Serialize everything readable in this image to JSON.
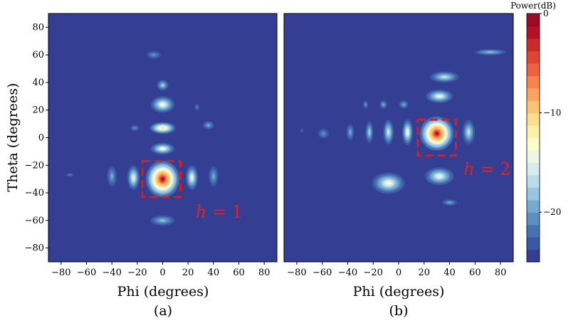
{
  "chart_data": [
    {
      "type": "heatmap",
      "panel_label": "(a)",
      "xlabel": "Phi (degrees)",
      "ylabel": "Theta (degrees)",
      "xlim": [
        -90,
        90
      ],
      "ylim": [
        -90,
        90
      ],
      "xticks": [
        -80,
        -60,
        -40,
        -20,
        0,
        20,
        40,
        60,
        80
      ],
      "yticks": [
        -80,
        -60,
        -40,
        -20,
        0,
        20,
        40,
        60,
        80
      ],
      "annotation": {
        "base": "h",
        "rest": " = 1",
        "box": {
          "phi_range": [
            -16,
            14
          ],
          "theta_range": [
            -43,
            -17
          ]
        }
      },
      "lobes": [
        {
          "phi": 0,
          "theta": -30,
          "peak_db": 0,
          "rx": 15,
          "ry": 15
        },
        {
          "phi": -23,
          "theta": -29,
          "peak_db": -14,
          "rx": 6,
          "ry": 11
        },
        {
          "phi": 23,
          "theta": -29,
          "peak_db": -14,
          "rx": 6,
          "ry": 11
        },
        {
          "phi": 0,
          "theta": -60,
          "peak_db": -18,
          "rx": 13,
          "ry": 5
        },
        {
          "phi": 0,
          "theta": -8,
          "peak_db": -13,
          "rx": 11,
          "ry": 5
        },
        {
          "phi": 0,
          "theta": 7,
          "peak_db": -10,
          "rx": 12,
          "ry": 5
        },
        {
          "phi": 0,
          "theta": 24,
          "peak_db": -13,
          "rx": 11,
          "ry": 7
        },
        {
          "phi": 0,
          "theta": 38,
          "peak_db": -17,
          "rx": 6,
          "ry": 5
        },
        {
          "phi": -7,
          "theta": 60,
          "peak_db": -20,
          "rx": 8,
          "ry": 4
        },
        {
          "phi": -40,
          "theta": -28,
          "peak_db": -19,
          "rx": 5,
          "ry": 10
        },
        {
          "phi": 40,
          "theta": -28,
          "peak_db": -19,
          "rx": 5,
          "ry": 10
        },
        {
          "phi": -22,
          "theta": 7,
          "peak_db": -20,
          "rx": 5,
          "ry": 3
        },
        {
          "phi": 36,
          "theta": 9,
          "peak_db": -19,
          "rx": 6,
          "ry": 4
        },
        {
          "phi": 27,
          "theta": 22,
          "peak_db": -21,
          "rx": 3,
          "ry": 4
        },
        {
          "phi": -73,
          "theta": -27,
          "peak_db": -21,
          "rx": 5,
          "ry": 2
        }
      ]
    },
    {
      "type": "heatmap",
      "panel_label": "(b)",
      "xlabel": "Phi (degrees)",
      "xlim": [
        -90,
        90
      ],
      "ylim": [
        -90,
        90
      ],
      "xticks": [
        -80,
        -60,
        -40,
        -20,
        0,
        20,
        40,
        60,
        80
      ],
      "annotation": {
        "base": "h",
        "rest": " = 2",
        "box": {
          "phi_range": [
            15,
            45
          ],
          "theta_range": [
            -13,
            13
          ]
        }
      },
      "lobes": [
        {
          "phi": 30,
          "theta": 3,
          "peak_db": 0,
          "rx": 15,
          "ry": 14
        },
        {
          "phi": 7,
          "theta": 4,
          "peak_db": -13,
          "rx": 5,
          "ry": 11
        },
        {
          "phi": -8,
          "theta": 4,
          "peak_db": -15,
          "rx": 5,
          "ry": 11
        },
        {
          "phi": -23,
          "theta": 4,
          "peak_db": -17,
          "rx": 4,
          "ry": 10
        },
        {
          "phi": -38,
          "theta": 4,
          "peak_db": -19,
          "rx": 4,
          "ry": 8
        },
        {
          "phi": 55,
          "theta": 4,
          "peak_db": -16,
          "rx": 6,
          "ry": 11
        },
        {
          "phi": -59,
          "theta": 3,
          "peak_db": -20,
          "rx": 6,
          "ry": 5
        },
        {
          "phi": -76,
          "theta": 5,
          "peak_db": -22,
          "rx": 2,
          "ry": 3
        },
        {
          "phi": 32,
          "theta": -28,
          "peak_db": -14,
          "rx": 14,
          "ry": 8
        },
        {
          "phi": 32,
          "theta": 30,
          "peak_db": -14,
          "rx": 13,
          "ry": 6
        },
        {
          "phi": 36,
          "theta": 44,
          "peak_db": -16,
          "rx": 14,
          "ry": 5
        },
        {
          "phi": 4,
          "theta": 24,
          "peak_db": -19,
          "rx": 5,
          "ry": 4
        },
        {
          "phi": -12,
          "theta": 24,
          "peak_db": -19,
          "rx": 4,
          "ry": 4
        },
        {
          "phi": -26,
          "theta": 24,
          "peak_db": -20,
          "rx": 3,
          "ry": 4
        },
        {
          "phi": -8,
          "theta": -33,
          "peak_db": -13,
          "rx": 15,
          "ry": 9
        },
        {
          "phi": 40,
          "theta": -47,
          "peak_db": -19,
          "rx": 8,
          "ry": 3
        },
        {
          "phi": 72,
          "theta": 62,
          "peak_db": -18,
          "rx": 17,
          "ry": 3
        }
      ]
    }
  ],
  "colorbar": {
    "title": "Power(dB)",
    "range": [
      -25,
      0
    ],
    "ticks": [
      0,
      -10,
      -20
    ],
    "tick_labels": [
      "0",
      "−10",
      "−20"
    ],
    "colors": [
      "#343f94",
      "#3a58a5",
      "#4873b2",
      "#5d8fc1",
      "#77aad0",
      "#98c5df",
      "#b9dbea",
      "#d8ecef",
      "#eef7e2",
      "#fbfdc6",
      "#fff1a8",
      "#fedd8c",
      "#fec275",
      "#fca45f",
      "#f8834d",
      "#ee6240",
      "#e04432",
      "#cb2a2a",
      "#b31126",
      "#9b0a26"
    ]
  }
}
